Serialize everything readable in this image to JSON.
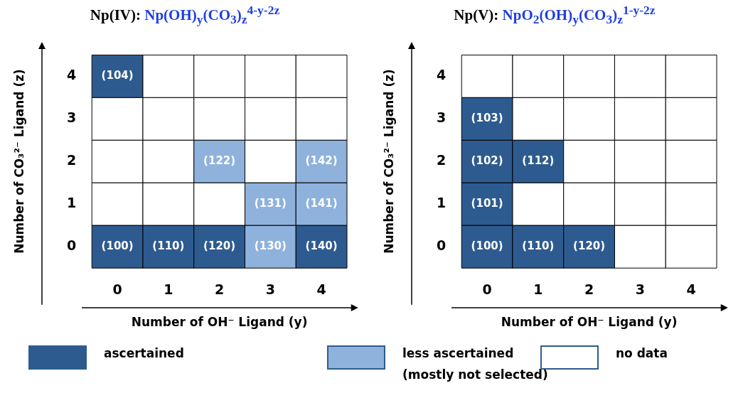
{
  "chart_data": [
    {
      "type": "heatmap",
      "title": "Np(IV): Np(OH)$_{y}$(CO$_{3}$)$_{z}$$^{4-y-2z}$",
      "xlabel": "Number of OH⁻ Ligand  (y)",
      "ylabel": "Number of CO₃²⁻ Ligand  (z)",
      "categories": [
        "0",
        "1",
        "2",
        "3",
        "4"
      ],
      "y_categories": [
        "4",
        "3",
        "2",
        "1",
        "0"
      ],
      "cells": [
        [
          104,
          null,
          null,
          null,
          null
        ],
        [
          null,
          null,
          null,
          null,
          null
        ],
        [
          null,
          null,
          122,
          null,
          142
        ],
        [
          null,
          null,
          null,
          131,
          141
        ],
        [
          100,
          110,
          120,
          130,
          140
        ]
      ],
      "cell_labels": [
        [
          "(104)",
          null,
          null,
          null,
          null
        ],
        [
          null,
          null,
          null,
          null,
          null
        ],
        [
          null,
          null,
          "(122)",
          null,
          "(142)"
        ],
        [
          null,
          null,
          null,
          "(131)",
          "(141)"
        ],
        [
          "(100)",
          "(110)",
          "(120)",
          "(130)",
          "(140)"
        ]
      ],
      "colors": [
        [
          "#2e5b8f",
          "#ffffff",
          "#ffffff",
          "#ffffff",
          "#ffffff"
        ],
        [
          "#ffffff",
          "#ffffff",
          "#ffffff",
          "#ffffff",
          "#ffffff"
        ],
        [
          "#ffffff",
          "#ffffff",
          "#8fb2dc",
          "#ffffff",
          "#8fb2dc"
        ],
        [
          "#ffffff",
          "#ffffff",
          "#ffffff",
          "#8fb2dc",
          "#8fb2dc"
        ],
        [
          "#2e5b8f",
          "#2e5b8f",
          "#2e5b8f",
          "#8fb2dc",
          "#2e5b8f"
        ]
      ]
    },
    {
      "type": "heatmap",
      "title": "Np(V): NpO$_{2}$(OH)$_{y}$(CO$_{3}$)$_{z}$$^{1-y-2z}$",
      "xlabel": "Number of OH⁻ Ligand  (y)",
      "ylabel": "Number of CO₃²⁻ Ligand  (z)",
      "categories": [
        "0",
        "1",
        "2",
        "3",
        "4"
      ],
      "y_categories": [
        "4",
        "3",
        "2",
        "1",
        "0"
      ],
      "cells": [
        [
          null,
          null,
          null,
          null,
          null
        ],
        [
          103,
          null,
          null,
          null,
          null
        ],
        [
          102,
          112,
          null,
          null,
          null
        ],
        [
          101,
          null,
          null,
          null,
          null
        ],
        [
          100,
          110,
          120,
          null,
          null
        ]
      ],
      "cell_labels": [
        [
          null,
          null,
          null,
          null,
          null
        ],
        [
          "(103)",
          null,
          null,
          null,
          null
        ],
        [
          "(102)",
          "(112)",
          null,
          null,
          null
        ],
        [
          "(101)",
          null,
          null,
          null,
          null
        ],
        [
          "(100)",
          "(110)",
          "(120)",
          null,
          null
        ]
      ],
      "colors": [
        [
          "#ffffff",
          "#ffffff",
          "#ffffff",
          "#ffffff",
          "#ffffff"
        ],
        [
          "#2e5b8f",
          "#ffffff",
          "#ffffff",
          "#ffffff",
          "#ffffff"
        ],
        [
          "#2e5b8f",
          "#2e5b8f",
          "#ffffff",
          "#ffffff",
          "#ffffff"
        ],
        [
          "#2e5b8f",
          "#ffffff",
          "#ffffff",
          "#ffffff",
          "#ffffff"
        ],
        [
          "#2e5b8f",
          "#2e5b8f",
          "#2e5b8f",
          "#ffffff",
          "#ffffff"
        ]
      ]
    },
    {
      "type": "other",
      "annotations": [
        "ascertained",
        "less ascertained (mostly not selected)",
        "no data"
      ],
      "colors": [
        "#2e5b8f",
        "#8fb2dc",
        "#ffffff"
      ]
    }
  ]
}
